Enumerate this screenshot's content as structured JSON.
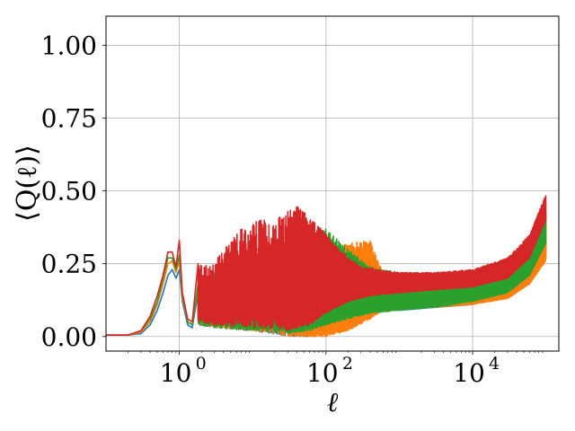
{
  "chart_data": {
    "type": "line",
    "title": "",
    "xlabel": "ℓ",
    "ylabel": "⟨Q(ℓ)⟩",
    "xscale": "log",
    "xlim": [
      0.1,
      150000
    ],
    "ylim": [
      -0.05,
      1.1
    ],
    "grid": true,
    "legend": "none",
    "x_ticks": [
      {
        "value": 1,
        "label": "10",
        "exp": "0"
      },
      {
        "value": 100,
        "label": "10",
        "exp": "2"
      },
      {
        "value": 10000,
        "label": "10",
        "exp": "4"
      }
    ],
    "y_ticks": [
      {
        "value": 0.0,
        "label": "0.00"
      },
      {
        "value": 0.25,
        "label": "0.25"
      },
      {
        "value": 0.5,
        "label": "0.50"
      },
      {
        "value": 0.75,
        "label": "0.75"
      },
      {
        "value": 1.0,
        "label": "1.00"
      }
    ],
    "series": [
      {
        "color": "#1f77b4",
        "smooth": [
          [
            0.1,
            0.005
          ],
          [
            0.2,
            0.005
          ],
          [
            0.3,
            0.01
          ],
          [
            0.4,
            0.04
          ],
          [
            0.5,
            0.09
          ],
          [
            0.6,
            0.15
          ],
          [
            0.7,
            0.21
          ],
          [
            0.8,
            0.23
          ],
          [
            0.9,
            0.2
          ],
          [
            1.0,
            0.23
          ],
          [
            1.1,
            0.12
          ],
          [
            1.3,
            0.04
          ],
          [
            1.5,
            0.03
          ],
          [
            1.8,
            0.15
          ]
        ],
        "osc_start": 1.8,
        "env_hi": [
          [
            1.8,
            0.16
          ],
          [
            3,
            0.2
          ],
          [
            10,
            0.24
          ],
          [
            30,
            0.28
          ],
          [
            60,
            0.24
          ],
          [
            100,
            0.16
          ],
          [
            200,
            0.13
          ],
          [
            500,
            0.11
          ],
          [
            1000,
            0.11
          ],
          [
            3000,
            0.11
          ],
          [
            10000,
            0.12
          ],
          [
            30000,
            0.15
          ],
          [
            60000,
            0.22
          ],
          [
            100000,
            0.33
          ]
        ],
        "env_lo": [
          [
            1.8,
            0.04
          ],
          [
            3,
            0.03
          ],
          [
            10,
            0.02
          ],
          [
            30,
            0.0
          ],
          [
            60,
            0.0
          ],
          [
            100,
            0.02
          ],
          [
            200,
            0.06
          ],
          [
            500,
            0.09
          ],
          [
            1000,
            0.09
          ],
          [
            3000,
            0.1
          ],
          [
            10000,
            0.11
          ],
          [
            30000,
            0.14
          ],
          [
            60000,
            0.2
          ],
          [
            100000,
            0.3
          ]
        ],
        "x_end": 100000
      },
      {
        "color": "#ff7f0e",
        "smooth": [
          [
            0.1,
            0.005
          ],
          [
            0.2,
            0.005
          ],
          [
            0.3,
            0.015
          ],
          [
            0.4,
            0.05
          ],
          [
            0.5,
            0.11
          ],
          [
            0.6,
            0.18
          ],
          [
            0.7,
            0.25
          ],
          [
            0.8,
            0.26
          ],
          [
            0.9,
            0.22
          ],
          [
            1.0,
            0.26
          ],
          [
            1.1,
            0.13
          ],
          [
            1.3,
            0.05
          ],
          [
            1.5,
            0.04
          ],
          [
            1.8,
            0.17
          ]
        ],
        "osc_start": 1.8,
        "env_hi": [
          [
            1.8,
            0.18
          ],
          [
            3,
            0.2
          ],
          [
            10,
            0.26
          ],
          [
            30,
            0.3
          ],
          [
            60,
            0.28
          ],
          [
            100,
            0.3
          ],
          [
            200,
            0.32
          ],
          [
            400,
            0.33
          ],
          [
            600,
            0.22
          ],
          [
            1000,
            0.2
          ],
          [
            3000,
            0.2
          ],
          [
            10000,
            0.2
          ],
          [
            30000,
            0.22
          ],
          [
            60000,
            0.3
          ],
          [
            100000,
            0.42
          ]
        ],
        "env_lo": [
          [
            1.8,
            0.04
          ],
          [
            3,
            0.03
          ],
          [
            10,
            0.02
          ],
          [
            30,
            0.0
          ],
          [
            60,
            0.0
          ],
          [
            100,
            0.0
          ],
          [
            200,
            0.02
          ],
          [
            400,
            0.06
          ],
          [
            600,
            0.09
          ],
          [
            1000,
            0.1
          ],
          [
            3000,
            0.1
          ],
          [
            10000,
            0.11
          ],
          [
            30000,
            0.13
          ],
          [
            60000,
            0.18
          ],
          [
            100000,
            0.26
          ]
        ],
        "x_end": 100000
      },
      {
        "color": "#2ca02c",
        "smooth": [
          [
            0.1,
            0.005
          ],
          [
            0.2,
            0.005
          ],
          [
            0.3,
            0.02
          ],
          [
            0.4,
            0.06
          ],
          [
            0.5,
            0.12
          ],
          [
            0.6,
            0.2
          ],
          [
            0.7,
            0.27
          ],
          [
            0.8,
            0.27
          ],
          [
            0.9,
            0.23
          ],
          [
            1.0,
            0.28
          ],
          [
            1.1,
            0.14
          ],
          [
            1.3,
            0.05
          ],
          [
            1.5,
            0.04
          ],
          [
            1.8,
            0.18
          ]
        ],
        "osc_start": 1.8,
        "env_hi": [
          [
            1.8,
            0.19
          ],
          [
            3,
            0.22
          ],
          [
            10,
            0.27
          ],
          [
            30,
            0.31
          ],
          [
            60,
            0.35
          ],
          [
            100,
            0.37
          ],
          [
            200,
            0.3
          ],
          [
            400,
            0.24
          ],
          [
            1000,
            0.22
          ],
          [
            3000,
            0.22
          ],
          [
            10000,
            0.22
          ],
          [
            30000,
            0.24
          ],
          [
            60000,
            0.31
          ],
          [
            100000,
            0.42
          ]
        ],
        "env_lo": [
          [
            1.8,
            0.04
          ],
          [
            3,
            0.03
          ],
          [
            10,
            0.02
          ],
          [
            30,
            0.01
          ],
          [
            60,
            0.02
          ],
          [
            100,
            0.04
          ],
          [
            200,
            0.06
          ],
          [
            400,
            0.08
          ],
          [
            1000,
            0.09
          ],
          [
            3000,
            0.1
          ],
          [
            10000,
            0.12
          ],
          [
            30000,
            0.15
          ],
          [
            60000,
            0.21
          ],
          [
            100000,
            0.32
          ]
        ],
        "x_end": 100000
      },
      {
        "color": "#d62728",
        "smooth": [
          [
            0.1,
            0.005
          ],
          [
            0.2,
            0.005
          ],
          [
            0.3,
            0.02
          ],
          [
            0.4,
            0.07
          ],
          [
            0.5,
            0.14
          ],
          [
            0.6,
            0.21
          ],
          [
            0.7,
            0.29
          ],
          [
            0.8,
            0.29
          ],
          [
            0.9,
            0.24
          ],
          [
            1.0,
            0.33
          ],
          [
            1.1,
            0.15
          ],
          [
            1.3,
            0.06
          ],
          [
            1.5,
            0.05
          ],
          [
            1.8,
            0.25
          ]
        ],
        "osc_start": 1.8,
        "env_hi": [
          [
            1.8,
            0.25
          ],
          [
            3,
            0.25
          ],
          [
            5,
            0.34
          ],
          [
            10,
            0.4
          ],
          [
            20,
            0.4
          ],
          [
            40,
            0.45
          ],
          [
            80,
            0.38
          ],
          [
            150,
            0.3
          ],
          [
            300,
            0.24
          ],
          [
            1000,
            0.22
          ],
          [
            3000,
            0.22
          ],
          [
            10000,
            0.23
          ],
          [
            30000,
            0.27
          ],
          [
            60000,
            0.35
          ],
          [
            100000,
            0.49
          ]
        ],
        "env_lo": [
          [
            1.8,
            0.05
          ],
          [
            3,
            0.04
          ],
          [
            10,
            0.03
          ],
          [
            30,
            0.02
          ],
          [
            60,
            0.04
          ],
          [
            100,
            0.08
          ],
          [
            200,
            0.12
          ],
          [
            400,
            0.14
          ],
          [
            1000,
            0.15
          ],
          [
            3000,
            0.16
          ],
          [
            10000,
            0.17
          ],
          [
            30000,
            0.2
          ],
          [
            60000,
            0.27
          ],
          [
            100000,
            0.4
          ]
        ],
        "x_end": 100000
      }
    ]
  }
}
